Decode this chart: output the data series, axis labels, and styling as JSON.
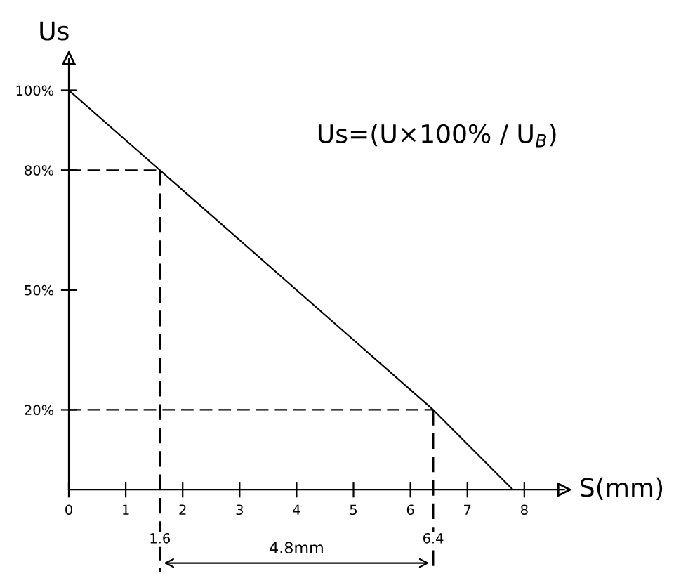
{
  "chart_data": {
    "type": "line",
    "xlabel": "S(mm)",
    "ylabel": "Us",
    "x": [
      0,
      1.6,
      6.4,
      7.8
    ],
    "series": [
      {
        "color": "#000000",
        "values": [
          100,
          80,
          20,
          0
        ]
      }
    ],
    "xlim": [
      0,
      8.7
    ],
    "ylim": [
      0,
      108
    ],
    "xticks": [
      0,
      1,
      2,
      3,
      4,
      5,
      6,
      7,
      8
    ],
    "yticks": [
      {
        "value": 20,
        "label": "20%"
      },
      {
        "value": 50,
        "label": "50%"
      },
      {
        "value": 80,
        "label": "80%"
      },
      {
        "value": 100,
        "label": "100%"
      }
    ],
    "ref_lines": [
      {
        "axis": "y",
        "value": 80,
        "line_style": "dashed",
        "color": "#000000"
      },
      {
        "axis": "y",
        "value": 20,
        "line_style": "dashed",
        "color": "#000000"
      },
      {
        "axis": "x",
        "value": 1.6,
        "label": "1.6",
        "line_style": "dashed",
        "color": "#000000"
      },
      {
        "axis": "x",
        "value": 6.4,
        "label": "6.4",
        "line_style": "dashed",
        "color": "#000000"
      }
    ],
    "annotations": [
      "Us=(U×100% / U$_{B}$)",
      "4.8mm"
    ],
    "grid": false,
    "legend": false,
    "marker": "none",
    "line_style": "solid"
  }
}
